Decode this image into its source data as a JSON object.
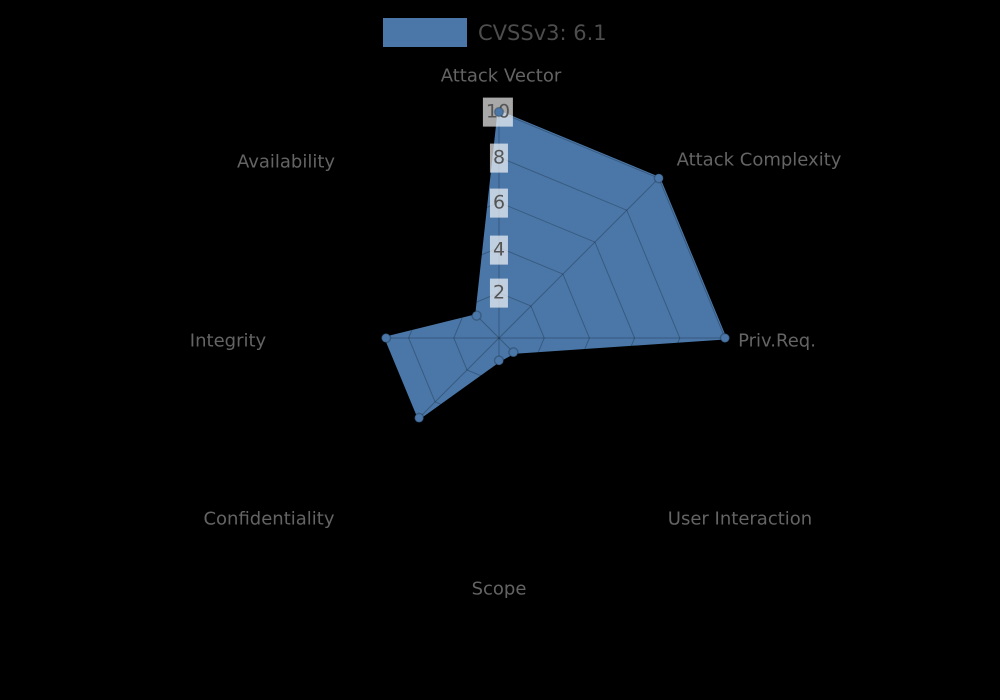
{
  "page": {
    "background_color": "#000000",
    "description": "Radar (spider) chart of CVSSv3 metric scores"
  },
  "legend": {
    "swatch_color": "#4a77a8",
    "label": "CVSSv3: 6.1"
  },
  "chart_data": {
    "type": "radar",
    "title": "CVSSv3: 6.1",
    "legend_position": "top-center",
    "categories": [
      "Attack Vector",
      "Attack Complexity",
      "Priv.Req.",
      "User Interaction",
      "Scope",
      "Confidentiality",
      "Integrity",
      "Availability"
    ],
    "series": [
      {
        "name": "CVSSv3: 6.1",
        "color": "#4a77a8",
        "values": [
          10,
          10,
          10,
          0.9,
          1.0,
          5,
          5,
          1.4
        ]
      }
    ],
    "radial_ticks": [
      2,
      4,
      6,
      8,
      10
    ],
    "radial_min": 0,
    "radial_max": 10,
    "grid": {
      "rings": 5,
      "spokes": 8,
      "style": "spider-web",
      "line_color": "rgba(0,0,0,0.24)"
    },
    "tick_label_color": "#555555",
    "tick_label_background": "rgba(255,255,255,0.66)",
    "axis_label_color": "#646464"
  }
}
